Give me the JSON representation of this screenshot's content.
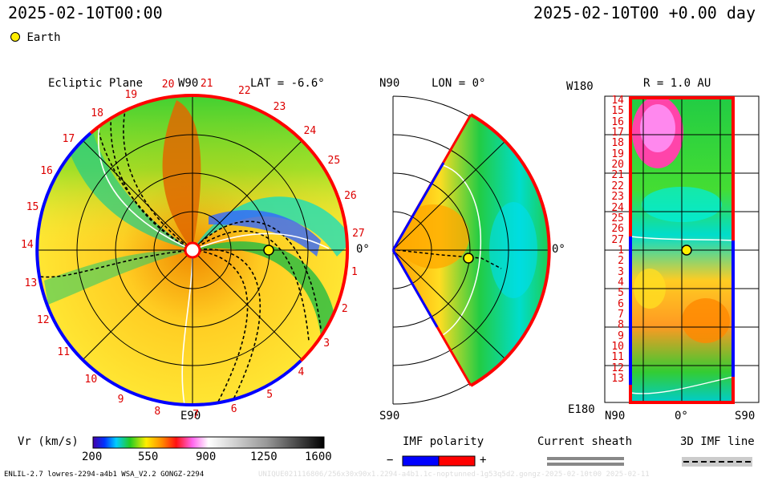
{
  "header": {
    "left_datetime": "2025-02-10T00:00",
    "right_datetime": "2025-02-10T00 +0.00 day"
  },
  "legend": {
    "earth_label": "Earth",
    "earth_color": "#ffee00"
  },
  "panels": {
    "ecliptic": {
      "title": "Ecliptic Plane",
      "lat_label": "LAT = -6.6°",
      "top_label": "W90",
      "bottom_label": "E90",
      "right_label": "0°",
      "carrington_numbers": [
        "1",
        "2",
        "3",
        "4",
        "5",
        "6",
        "7",
        "8",
        "9",
        "10",
        "11",
        "12",
        "13",
        "14",
        "15",
        "16",
        "17",
        "18",
        "19",
        "20",
        "21",
        "22",
        "23",
        "24",
        "25",
        "26",
        "27"
      ]
    },
    "meridional": {
      "top_label": "N90",
      "lon_label": "LON = 0°",
      "bottom_label": "S90",
      "right_label": "0°"
    },
    "map": {
      "top_left_label": "W180",
      "radius_label": "R = 1.0 AU",
      "bottom_left_label": "E180",
      "x_labels": [
        "N90",
        "0°",
        "S90"
      ],
      "y_labels": [
        "14",
        "15",
        "16",
        "17",
        "18",
        "19",
        "20",
        "21",
        "22",
        "23",
        "24",
        "25",
        "26",
        "27",
        "1",
        "2",
        "3",
        "4",
        "5",
        "6",
        "7",
        "8",
        "9",
        "10",
        "11",
        "12",
        "13"
      ]
    }
  },
  "colorbar": {
    "title": "Vr (km/s)",
    "ticks": [
      "200",
      "550",
      "900",
      "1250",
      "1600"
    ]
  },
  "imf_polarity": {
    "title": "IMF polarity",
    "minus": "−",
    "plus": "+",
    "neg_color": "#0000ff",
    "pos_color": "#ff0000"
  },
  "current_sheath": {
    "title": "Current sheath"
  },
  "imf_line": {
    "title": "3D IMF line"
  },
  "footer": {
    "model_info": "ENLIL-2.7 lowres-2294-a4b1 WSA_V2.2 GONGZ-2294",
    "faded_run_id": "UNIQUE021116806/256x30x90x1.2294-a4b1.1c-noptunned-1g53q5d2.gongz-2025-02-10t00  2025-02-11"
  }
}
